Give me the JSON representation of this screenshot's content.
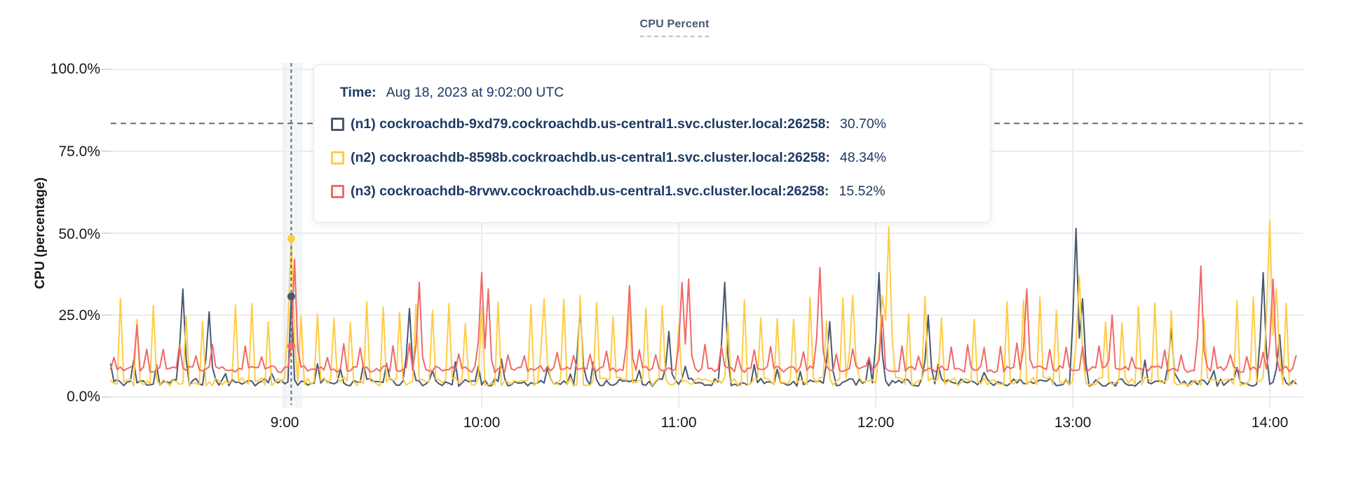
{
  "chart_data": {
    "type": "line",
    "title": "CPU Percent",
    "ylabel": "CPU (percentage)",
    "ylim": [
      0,
      100
    ],
    "grid": true,
    "legend_position": "tooltip",
    "ytick_labels": [
      "100.0%",
      "75.0%",
      "50.0%",
      "25.0%",
      "0.0%"
    ],
    "ytick_pcts": [
      100,
      75,
      50,
      25,
      0
    ],
    "xtick_labels": [
      "9:00",
      "10:00",
      "11:00",
      "12:00",
      "13:00",
      "14:00"
    ],
    "xtick_minutes": [
      0,
      60,
      120,
      180,
      240,
      300
    ],
    "x_start_min": -53,
    "x_end_min": 308,
    "series": [
      {
        "name": "(n1) cockroachdb-9xd79.cockroachdb.us-central1.svc.cluster.local:26258:",
        "color": "#475872",
        "base": 4.5,
        "noise": 1.2,
        "seed": 11,
        "minor": {
          "period": 7,
          "phase": 3,
          "min": 7,
          "max": 12,
          "skip": 0.3
        },
        "spikes": [
          [
            -31,
            33
          ],
          [
            -23,
            26
          ],
          [
            38,
            27
          ],
          [
            90,
            27
          ],
          [
            117,
            20
          ],
          [
            134,
            35
          ],
          [
            166,
            23
          ],
          [
            181,
            38
          ],
          [
            196,
            25
          ],
          [
            241,
            51.5
          ],
          [
            243,
            30
          ],
          [
            270,
            21
          ],
          [
            298,
            38
          ],
          [
            303,
            19
          ]
        ]
      },
      {
        "name": "(n2) cockroachdb-8598b.cockroachdb.us-central1.svc.cluster.local:26258:",
        "color": "#FFCD44",
        "base": 4.8,
        "noise": 1.4,
        "seed": 22,
        "minor": {
          "period": 5,
          "phase": 0,
          "min": 22,
          "max": 31,
          "skip": 0.1
        },
        "spikes": [
          [
            2,
            48.34
          ],
          [
            79,
            30
          ],
          [
            173,
            31
          ],
          [
            182,
            31
          ],
          [
            184,
            52
          ],
          [
            242,
            37
          ],
          [
            300,
            54
          ],
          [
            302,
            33
          ]
        ]
      },
      {
        "name": "(n3) cockroachdb-8rvwv.cockroachdb.us-central1.svc.cluster.local:26258:",
        "color": "#F16969",
        "base": 8.5,
        "noise": 1.0,
        "seed": 33,
        "minor": {
          "period": 5,
          "phase": 3,
          "min": 12,
          "max": 16.5,
          "skip": 0.15
        },
        "spikes": [
          [
            -45,
            22
          ],
          [
            3,
            42
          ],
          [
            41,
            35
          ],
          [
            60,
            38
          ],
          [
            62,
            33
          ],
          [
            105,
            34
          ],
          [
            121,
            35
          ],
          [
            123,
            36
          ],
          [
            163,
            39.5
          ],
          [
            182,
            25
          ],
          [
            226,
            33
          ],
          [
            252,
            25
          ],
          [
            279,
            40
          ],
          [
            301,
            36
          ]
        ]
      }
    ],
    "hover": {
      "time_label": "Time:",
      "time_value": "Aug 18, 2023 at 9:02:00 UTC",
      "minute": 2,
      "values": [
        "30.70%",
        "48.34%",
        "15.52%"
      ],
      "values_num": [
        30.7,
        48.34,
        15.52
      ],
      "hline_pct": 83.5
    }
  },
  "colors": {
    "title": "#475872",
    "tooltip_text": "#1d3964",
    "grid": "#ececec",
    "tick": "#d9d9d9",
    "crosshair": "#54718a",
    "hover_band": "rgba(60,80,110,0.06)",
    "axis_text": "#17181a"
  }
}
